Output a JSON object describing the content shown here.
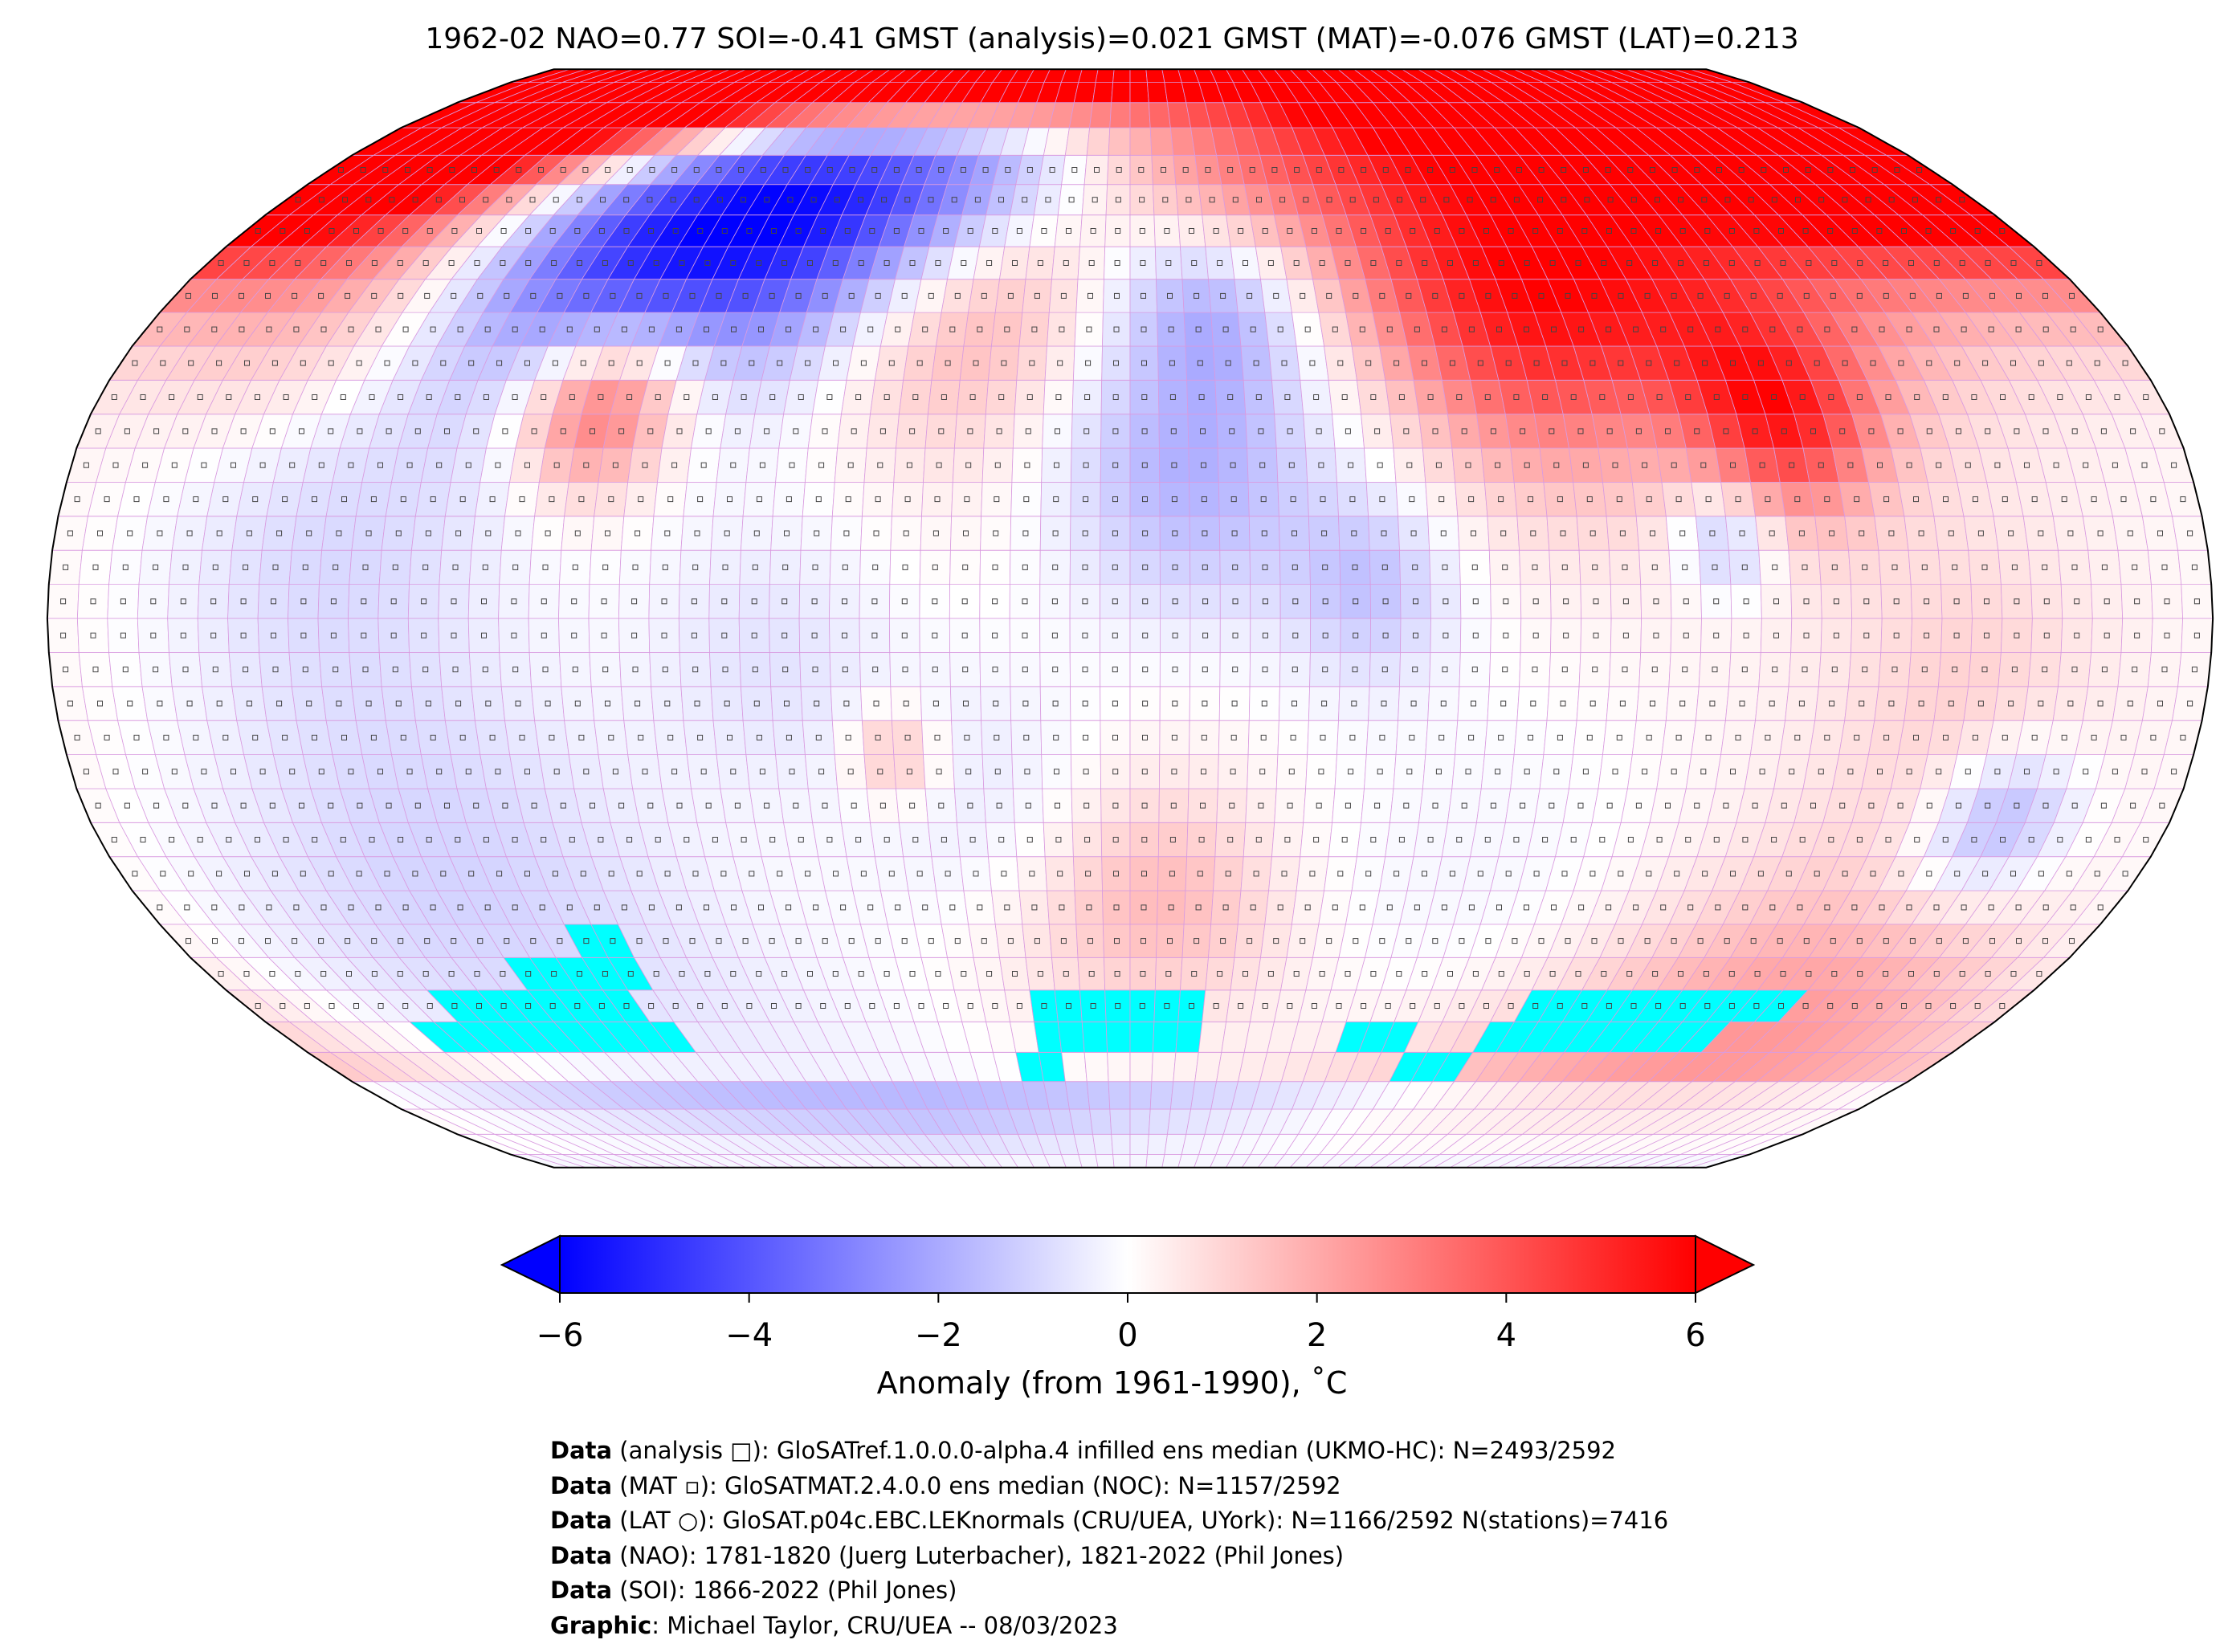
{
  "title": "1962-02 NAO=0.77 SOI=-0.41 GMST (analysis)=0.021 GMST (MAT)=-0.076 GMST (LAT)=0.213",
  "map": {
    "projection": "Robinson",
    "grid_resolution_deg": 5,
    "missing_color": "#00ffff",
    "gridline_color": "#d99be0"
  },
  "colorbar": {
    "label": "Anomaly (from 1961-1990), ˚C",
    "min": -6,
    "max": 6,
    "ticks": [
      "−6",
      "−4",
      "−2",
      "0",
      "2",
      "4",
      "6"
    ],
    "tick_values": [
      -6,
      -4,
      -2,
      0,
      2,
      4,
      6
    ],
    "colormap": "bwr",
    "extend": "both"
  },
  "footer": [
    {
      "bold": "Data",
      "text": " (analysis □): GloSATref.1.0.0.0-alpha.4 infilled ens median (UKMO-HC): N=2493/2592"
    },
    {
      "bold": "Data",
      "text": " (MAT ▫): GloSATMAT.2.4.0.0 ens median (NOC): N=1157/2592"
    },
    {
      "bold": "Data",
      "text": " (LAT ○): GloSAT.p04c.EBC.LEKnormals (CRU/UEA, UYork): N=1166/2592 N(stations)=7416"
    },
    {
      "bold": "Data",
      "text": " (NAO): 1781-1820 (Juerg Luterbacher), 1821-2022 (Phil Jones)"
    },
    {
      "bold": "Data",
      "text": " (SOI): 1866-2022 (Phil Jones)"
    },
    {
      "bold": "Graphic",
      "text": ": Michael Taylor, CRU/UEA -- 08/03/2023"
    }
  ]
}
